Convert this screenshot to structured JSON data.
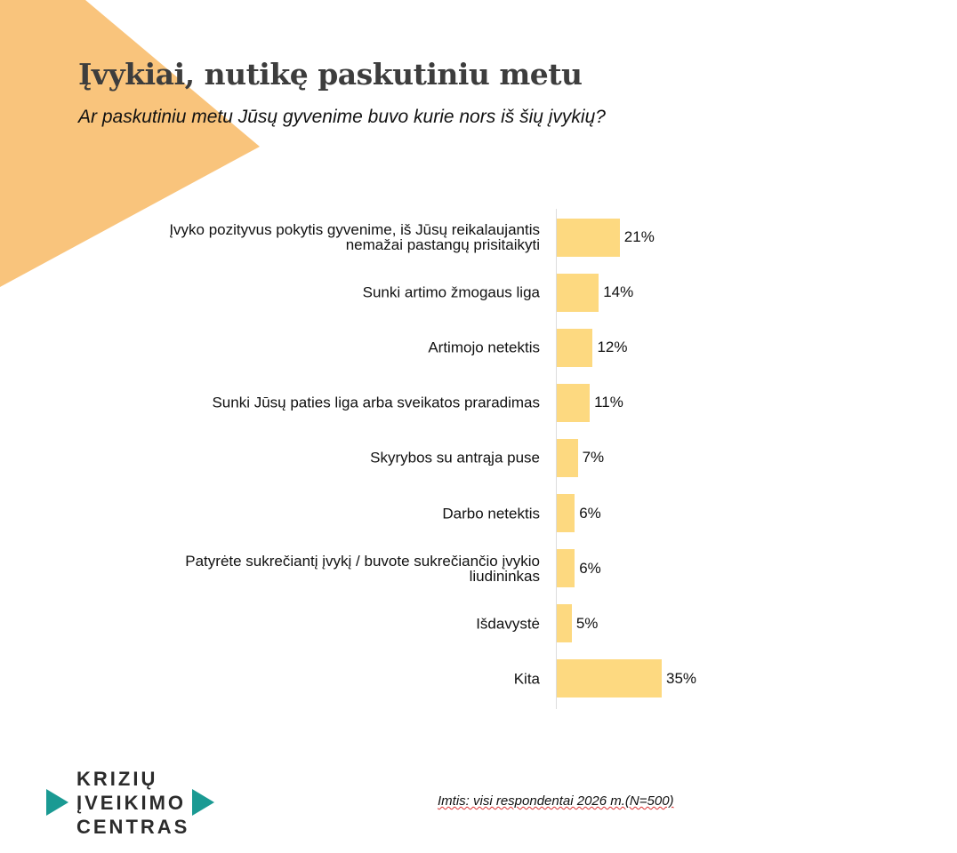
{
  "chart_data": {
    "type": "bar",
    "orientation": "horizontal",
    "title": "Įvykiai, nutikę paskutiniu metu",
    "subtitle": "Ar paskutiniu metu Jūsų gyvenime buvo kurie nors iš šių įvykių?",
    "categories": [
      "Įvyko pozityvus pokytis gyvenime, iš Jūsų reikalaujantis nemažai pastangų prisitaikyti",
      "Sunki artimo žmogaus liga",
      "Artimojo netektis",
      "Sunki Jūsų paties liga arba sveikatos praradimas",
      "Skyrybos su antrąja puse",
      "Darbo netektis",
      "Patyrėte sukrečiantį įvykį / buvote sukrečiančio įvykio liudininkas",
      "Išdavystė",
      "Kita"
    ],
    "values": [
      21,
      14,
      12,
      11,
      7,
      6,
      6,
      5,
      35
    ],
    "value_labels": [
      "21%",
      "14%",
      "12%",
      "11%",
      "7%",
      "6%",
      "6%",
      "5%",
      "35%"
    ],
    "color": "#fdd980",
    "note": "Imtis: visi respondentai 2026 m.(N=500)"
  },
  "logo": [
    "KRIZIŲ",
    "ĮVEIKIMO",
    "CENTRAS"
  ]
}
